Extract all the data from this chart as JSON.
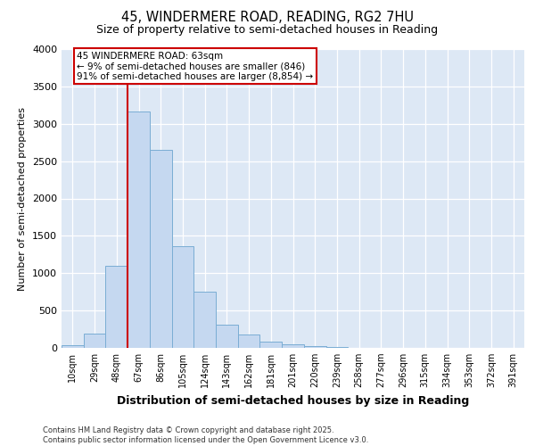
{
  "title_line1": "45, WINDERMERE ROAD, READING, RG2 7HU",
  "title_line2": "Size of property relative to semi-detached houses in Reading",
  "xlabel": "Distribution of semi-detached houses by size in Reading",
  "ylabel": "Number of semi-detached properties",
  "categories": [
    "10sqm",
    "29sqm",
    "48sqm",
    "67sqm",
    "86sqm",
    "105sqm",
    "124sqm",
    "143sqm",
    "162sqm",
    "181sqm",
    "201sqm",
    "220sqm",
    "239sqm",
    "258sqm",
    "277sqm",
    "296sqm",
    "315sqm",
    "334sqm",
    "353sqm",
    "372sqm",
    "391sqm"
  ],
  "values": [
    30,
    190,
    1100,
    3160,
    2650,
    1360,
    750,
    310,
    175,
    80,
    50,
    20,
    10,
    5,
    3,
    2,
    1,
    0,
    0,
    0,
    0
  ],
  "bar_color": "#c5d8f0",
  "bar_edge_color": "#7aadd4",
  "background_color": "#dde8f5",
  "vline_x_index": 3,
  "vline_color": "#cc0000",
  "annotation_text": "45 WINDERMERE ROAD: 63sqm\n← 9% of semi-detached houses are smaller (846)\n91% of semi-detached houses are larger (8,854) →",
  "annotation_box_color": "white",
  "annotation_box_edge": "#cc0000",
  "ylim": [
    0,
    4000
  ],
  "yticks": [
    0,
    500,
    1000,
    1500,
    2000,
    2500,
    3000,
    3500,
    4000
  ],
  "footer": "Contains HM Land Registry data © Crown copyright and database right 2025.\nContains public sector information licensed under the Open Government Licence v3.0."
}
